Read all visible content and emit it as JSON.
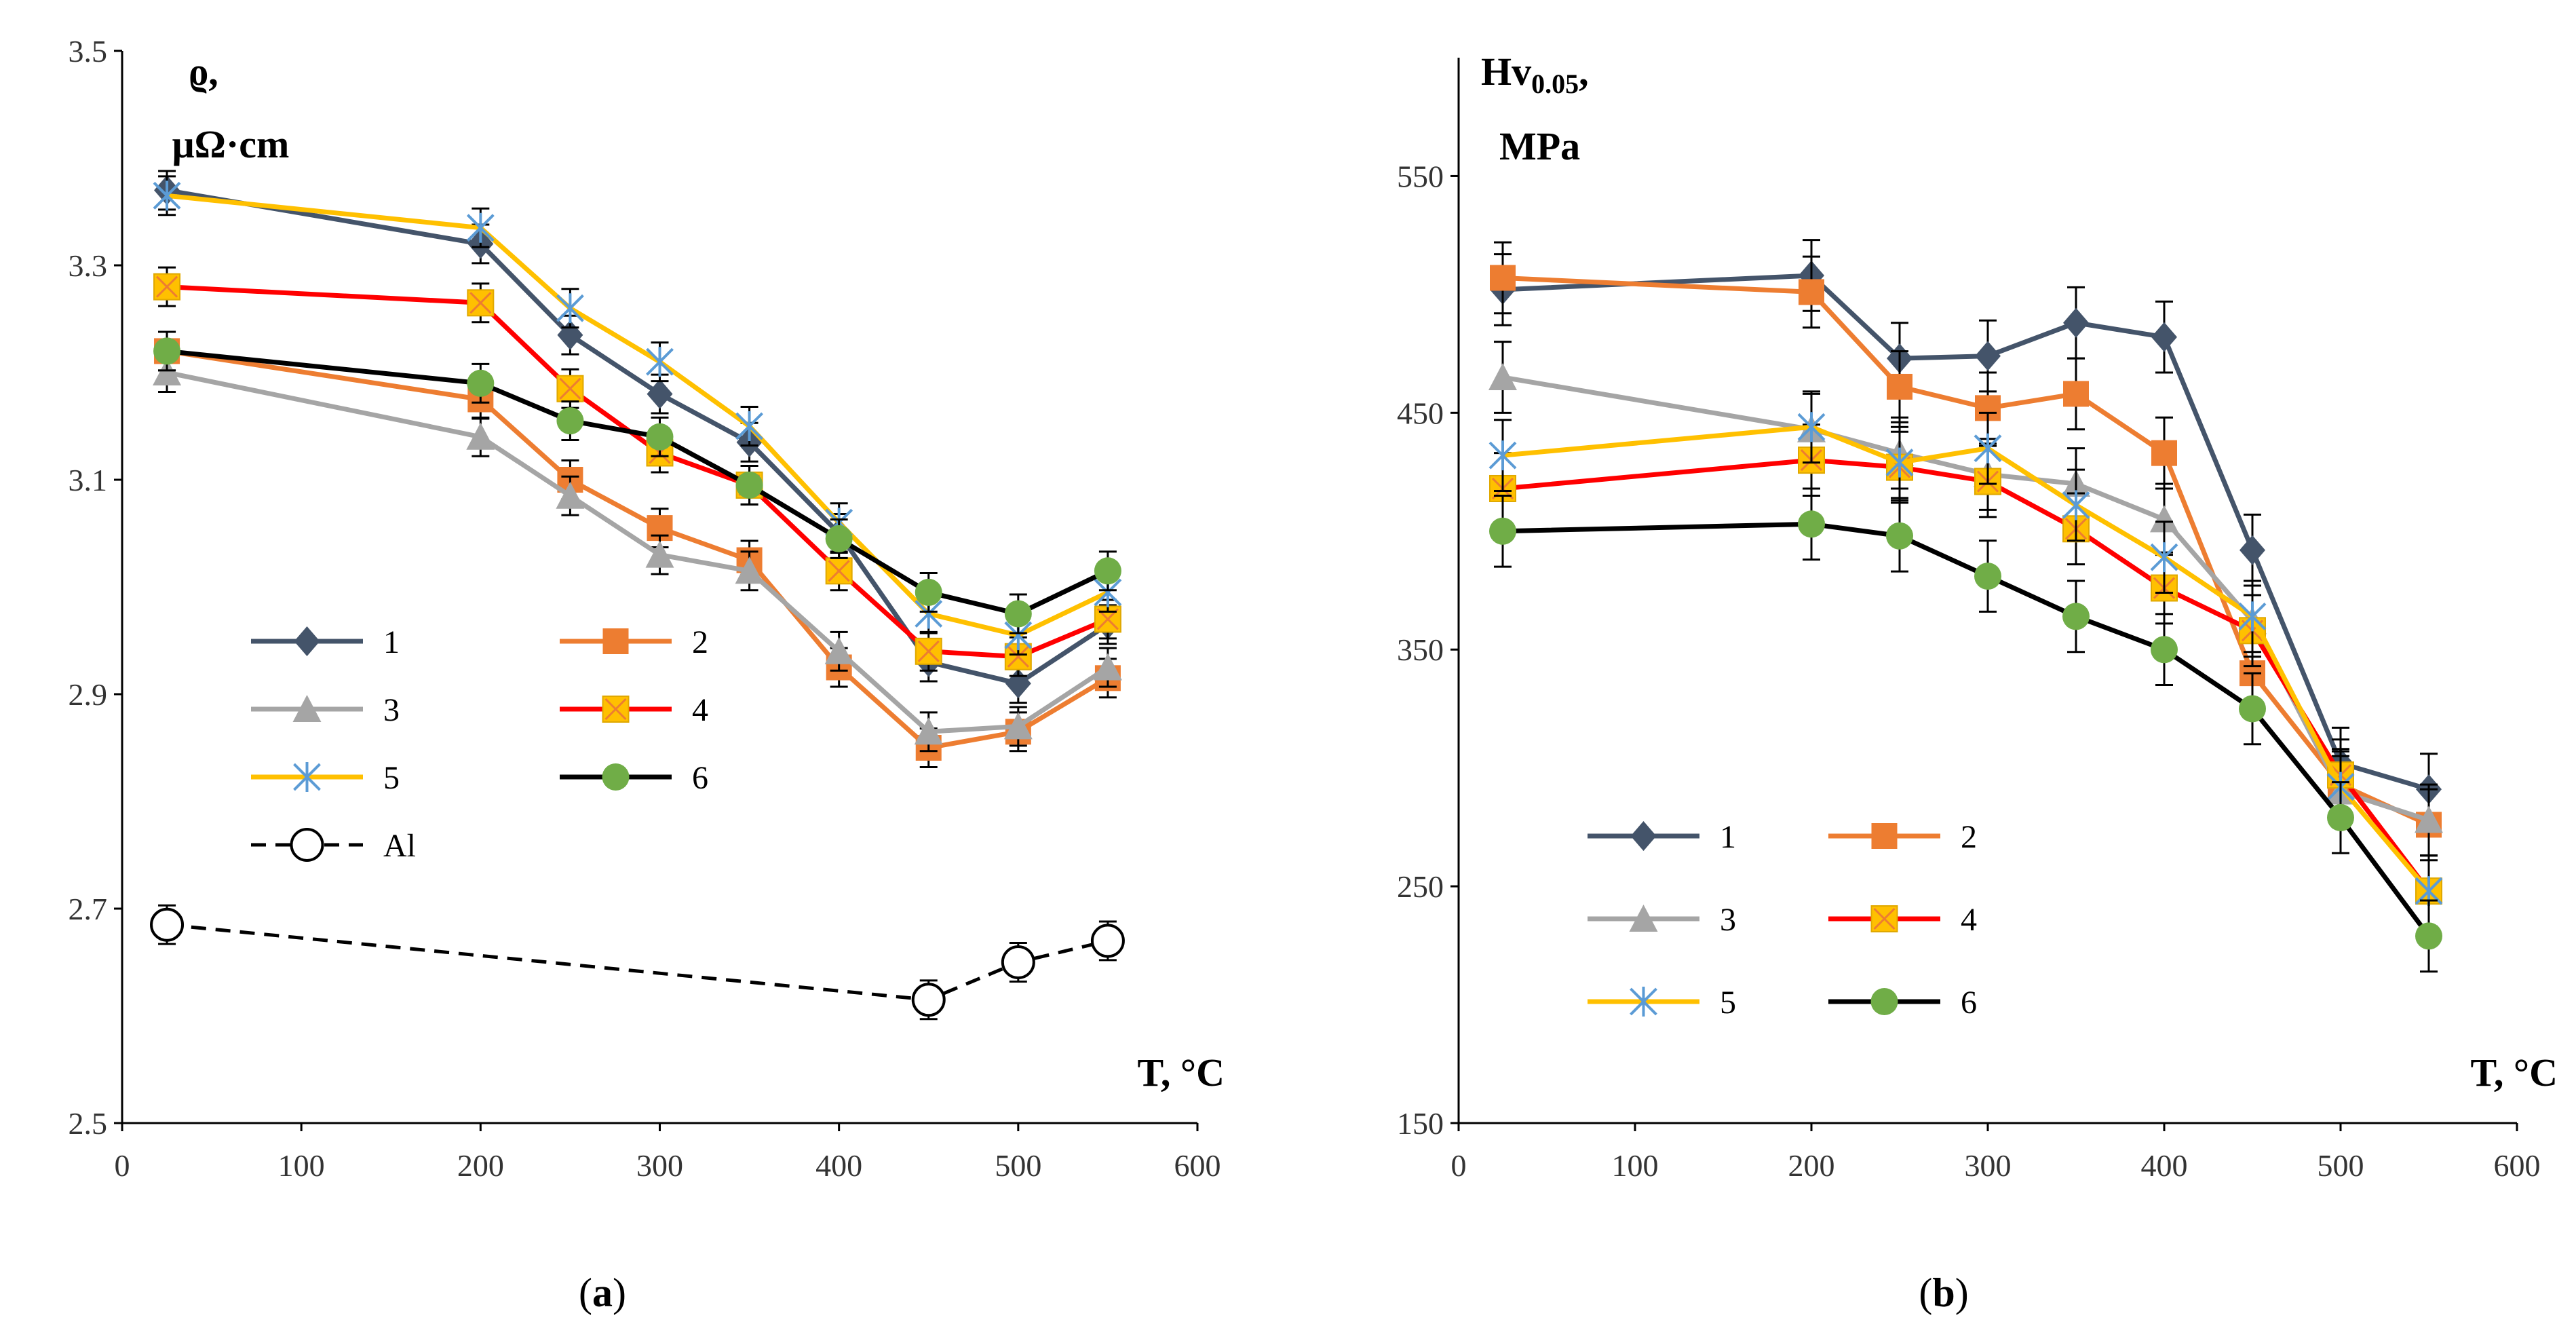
{
  "chart_data": [
    {
      "type": "line",
      "panel_label": {
        "open": "(",
        "letter": "a",
        "close": ")"
      },
      "ylabel_lines": [
        "ϱ,",
        "μΩ·cm"
      ],
      "xlabel": "T, °C",
      "xlim": [
        0,
        600
      ],
      "ylim": [
        2.5,
        3.5
      ],
      "xticks": [
        0,
        100,
        200,
        300,
        400,
        500,
        600
      ],
      "yticks": [
        2.5,
        2.7,
        2.9,
        3.1,
        3.3,
        3.5
      ],
      "ytick_labels": [
        "2.5",
        "2.7",
        "2.9",
        "3.1",
        "3.3",
        "3.5"
      ],
      "err": 0.018,
      "legend_position": "left-middle",
      "series": [
        {
          "name": "1",
          "color": "#44546A",
          "marker": "diamond",
          "x": [
            25,
            200,
            250,
            300,
            350,
            400,
            450,
            500,
            550
          ],
          "y": [
            3.37,
            3.32,
            3.235,
            3.18,
            3.135,
            3.05,
            2.93,
            2.91,
            2.965
          ]
        },
        {
          "name": "2",
          "color": "#ED7D31",
          "marker": "square",
          "x": [
            25,
            200,
            250,
            300,
            350,
            400,
            450,
            500,
            550
          ],
          "y": [
            3.22,
            3.175,
            3.1,
            3.055,
            3.025,
            2.925,
            2.85,
            2.865,
            2.915
          ]
        },
        {
          "name": "3",
          "color": "#A5A5A5",
          "marker": "triangle",
          "x": [
            25,
            200,
            250,
            300,
            350,
            400,
            450,
            500,
            550
          ],
          "y": [
            3.2,
            3.14,
            3.085,
            3.03,
            3.015,
            2.94,
            2.865,
            2.87,
            2.925
          ]
        },
        {
          "name": "4",
          "color": "#FF0000",
          "marker": "xsquare",
          "x": [
            25,
            200,
            250,
            300,
            350,
            400,
            450,
            500,
            550
          ],
          "y": [
            3.28,
            3.265,
            3.185,
            3.125,
            3.095,
            3.015,
            2.94,
            2.935,
            2.97
          ]
        },
        {
          "name": "5",
          "color": "#FFC000",
          "marker": "star",
          "x": [
            25,
            200,
            250,
            300,
            350,
            400,
            450,
            500,
            550
          ],
          "y": [
            3.365,
            3.335,
            3.26,
            3.21,
            3.15,
            3.06,
            2.975,
            2.955,
            2.995
          ]
        },
        {
          "name": "6",
          "color": "#000000",
          "marker": "circle",
          "marker_fill": "#70AD47",
          "x": [
            25,
            200,
            250,
            300,
            350,
            400,
            450,
            500,
            550
          ],
          "y": [
            3.22,
            3.19,
            3.155,
            3.14,
            3.095,
            3.045,
            2.995,
            2.975,
            3.015
          ]
        },
        {
          "name": "Al",
          "color": "#000000",
          "marker": "open-circle",
          "dashed": true,
          "x": [
            25,
            450,
            500,
            550
          ],
          "y": [
            2.685,
            2.615,
            2.65,
            2.67
          ]
        }
      ]
    },
    {
      "type": "line",
      "panel_label": {
        "open": "(",
        "letter": "b",
        "close": ")"
      },
      "ylabel_lines": [
        "Hv",
        "0.05",
        ",",
        "MPa"
      ],
      "xlabel": "T, °C",
      "xlim": [
        0,
        600
      ],
      "ylim": [
        150,
        600
      ],
      "xticks": [
        0,
        100,
        200,
        300,
        400,
        500,
        600
      ],
      "yticks": [
        150,
        250,
        350,
        450,
        550
      ],
      "ytick_labels": [
        "150",
        "250",
        "350",
        "450",
        "550"
      ],
      "err": 15,
      "legend_position": "bottom-left",
      "series": [
        {
          "name": "1",
          "color": "#44546A",
          "marker": "diamond",
          "x": [
            25,
            200,
            250,
            300,
            350,
            400,
            450,
            500,
            550
          ],
          "y": [
            502,
            508,
            473,
            474,
            488,
            482,
            392,
            302,
            291
          ]
        },
        {
          "name": "2",
          "color": "#ED7D31",
          "marker": "square",
          "x": [
            25,
            200,
            250,
            300,
            350,
            400,
            450,
            500,
            550
          ],
          "y": [
            507,
            501,
            461,
            452,
            458,
            433,
            340,
            293,
            276
          ]
        },
        {
          "name": "3",
          "color": "#A5A5A5",
          "marker": "triangle",
          "x": [
            25,
            200,
            250,
            300,
            350,
            400,
            450,
            500,
            550
          ],
          "y": [
            465,
            443,
            433,
            424,
            420,
            405,
            362,
            290,
            278
          ]
        },
        {
          "name": "4",
          "color": "#FF0000",
          "marker": "xsquare",
          "x": [
            25,
            200,
            250,
            300,
            350,
            400,
            450,
            500,
            550
          ],
          "y": [
            418,
            430,
            427,
            421,
            401,
            376,
            358,
            297,
            248
          ]
        },
        {
          "name": "5",
          "color": "#FFC000",
          "marker": "star",
          "x": [
            25,
            200,
            250,
            300,
            350,
            400,
            450,
            500,
            550
          ],
          "y": [
            432,
            444,
            429,
            435,
            411,
            389,
            364,
            292,
            248
          ]
        },
        {
          "name": "6",
          "color": "#000000",
          "marker": "circle",
          "marker_fill": "#70AD47",
          "x": [
            25,
            200,
            250,
            300,
            350,
            400,
            450,
            500,
            550
          ],
          "y": [
            400,
            403,
            398,
            381,
            364,
            350,
            325,
            279,
            229
          ]
        }
      ]
    }
  ]
}
